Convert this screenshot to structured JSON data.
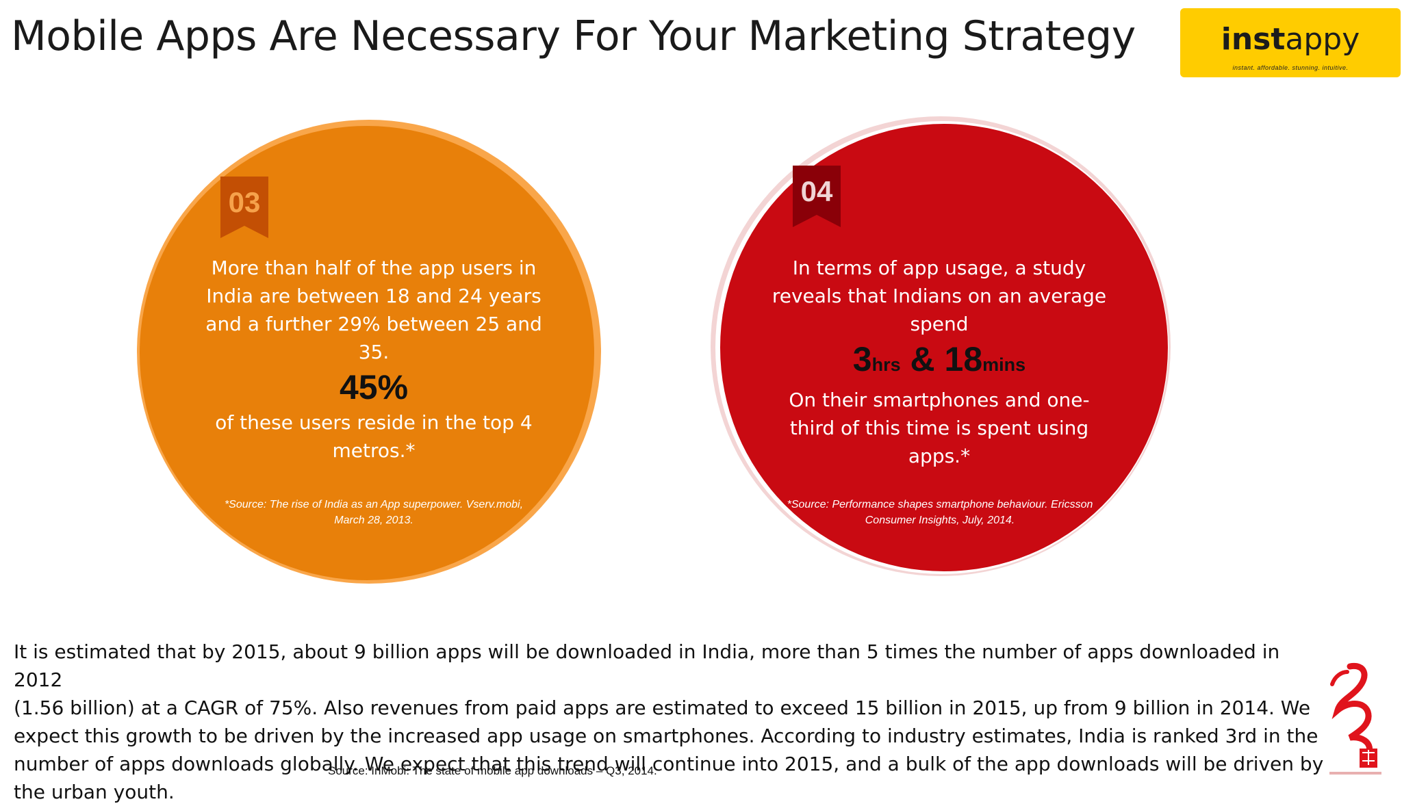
{
  "header": {
    "title": "Mobile Apps Are Necessary For Your Marketing Strategy"
  },
  "logo": {
    "brand_bold": "inst",
    "brand_rest": "appy",
    "tagline": "instant. affordable. stunning. intuitive."
  },
  "card_left": {
    "number": "03",
    "lines_top": [
      "More than half of the app users in",
      "India are between 18 and 24 years",
      "and a further 29% between 25 and",
      "35."
    ],
    "highlight": "45%",
    "lines_bottom": [
      "of these users reside in the top 4",
      "metros.*"
    ],
    "source_lines": [
      "*Source: The rise of India as an App superpower. Vserv.mobi,",
      "March 28, 2013."
    ],
    "colors": {
      "fill": "#e8800a",
      "ribbon": "#c34f04"
    }
  },
  "card_right": {
    "number": "04",
    "lines_top": [
      "In terms of app usage, a study",
      "reveals that Indians on an average",
      "spend"
    ],
    "highlight": {
      "hours": "3",
      "hours_unit": "hrs",
      "amp": " & ",
      "mins": "18",
      "mins_unit": "mins"
    },
    "lines_bottom": [
      "On their smartphones and one-",
      "third of this time is spent using",
      "apps.*"
    ],
    "source_lines": [
      "*Source: Performance shapes smartphone behaviour. Ericsson",
      "Consumer Insights, July, 2014."
    ],
    "colors": {
      "fill": "#c90a12",
      "ribbon": "#8a0008"
    }
  },
  "body": {
    "lines": [
      "It is estimated that by 2015, about 9 billion apps will be downloaded in India, more than 5 times the number of apps downloaded in 2012",
      "(1.56 billion) at a CAGR of 75%. Also revenues from paid apps are estimated to exceed 15 billion in 2015, up from 9 billion in 2014. We",
      "expect this growth to be driven by the increased app usage on smartphones. According to industry estimates, India is ranked 3rd in the",
      "number of apps downloads globally. We expect that this trend will continue into 2015, and a bulk of the app downloads will be driven by",
      "the urban youth."
    ],
    "source": "Source: InMobi: The state of mobile app downloads – Q3, 2014."
  }
}
